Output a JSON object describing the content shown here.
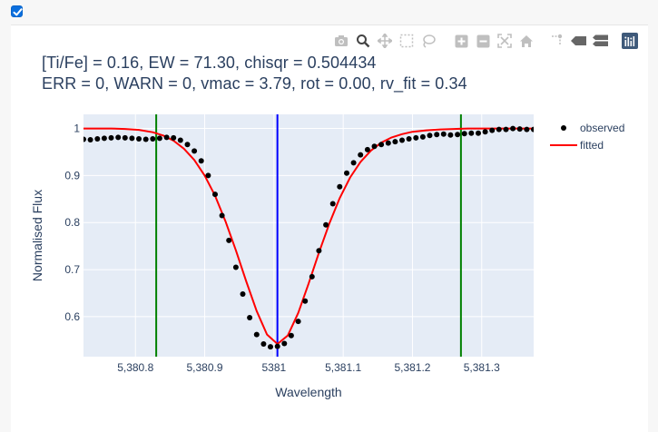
{
  "checkbox": {
    "checked": true
  },
  "modebar": {
    "icons": [
      "camera-icon",
      "zoom-icon",
      "pan-icon",
      "box-select-icon",
      "lasso-icon",
      "zoom-in-icon",
      "zoom-out-icon",
      "autoscale-icon",
      "home-icon",
      "spike-lines-icon",
      "hover-closest-icon",
      "hover-compare-icon",
      "plotly-logo-icon"
    ]
  },
  "title": {
    "line1": "[Ti/Fe] = 0.16, EW = 71.30, chisqr = 0.504434",
    "line2": "ERR = 0, WARN = 0, vmac = 3.79, rot = 0.00, rv_fit = 0.34"
  },
  "chart_data": {
    "type": "line",
    "xlabel": "Wavelength",
    "ylabel": "Normalised Flux",
    "xlim": [
      5380.725,
      5381.375
    ],
    "ylim": [
      0.515,
      1.03
    ],
    "x_ticks": [
      5380.8,
      5380.9,
      5381.0,
      5381.1,
      5381.2,
      5381.3
    ],
    "x_tick_labels": [
      "5,380.8",
      "5,380.9",
      "5381",
      "5,381.1",
      "5,381.2",
      "5,381.3"
    ],
    "y_ticks": [
      0.6,
      0.7,
      0.8,
      0.9,
      1.0
    ],
    "y_tick_labels": [
      "0.6",
      "0.7",
      "0.8",
      "0.9",
      "1"
    ],
    "grid": true,
    "legend_position": "top-right",
    "vertical_lines": [
      {
        "x": 5380.83,
        "color": "#008000"
      },
      {
        "x": 5381.005,
        "color": "#0000ff"
      },
      {
        "x": 5381.27,
        "color": "#008000"
      }
    ],
    "series": [
      {
        "name": "observed",
        "mode": "markers",
        "color": "#000000",
        "x": [
          5380.725,
          5380.735,
          5380.745,
          5380.755,
          5380.765,
          5380.775,
          5380.785,
          5380.795,
          5380.805,
          5380.815,
          5380.825,
          5380.835,
          5380.845,
          5380.855,
          5380.865,
          5380.875,
          5380.885,
          5380.895,
          5380.905,
          5380.915,
          5380.925,
          5380.935,
          5380.945,
          5380.955,
          5380.965,
          5380.975,
          5380.985,
          5380.995,
          5381.005,
          5381.015,
          5381.025,
          5381.035,
          5381.045,
          5381.055,
          5381.065,
          5381.075,
          5381.085,
          5381.095,
          5381.105,
          5381.115,
          5381.125,
          5381.135,
          5381.145,
          5381.155,
          5381.165,
          5381.175,
          5381.185,
          5381.195,
          5381.205,
          5381.215,
          5381.225,
          5381.235,
          5381.245,
          5381.255,
          5381.265,
          5381.275,
          5381.285,
          5381.295,
          5381.305,
          5381.315,
          5381.325,
          5381.335,
          5381.345,
          5381.355,
          5381.365,
          5381.375
        ],
        "y": [
          0.977,
          0.976,
          0.978,
          0.979,
          0.98,
          0.981,
          0.98,
          0.979,
          0.978,
          0.977,
          0.978,
          0.979,
          0.981,
          0.98,
          0.975,
          0.966,
          0.952,
          0.931,
          0.9,
          0.86,
          0.815,
          0.762,
          0.705,
          0.648,
          0.598,
          0.562,
          0.542,
          0.536,
          0.537,
          0.543,
          0.56,
          0.59,
          0.633,
          0.685,
          0.74,
          0.795,
          0.84,
          0.876,
          0.905,
          0.927,
          0.944,
          0.955,
          0.962,
          0.966,
          0.969,
          0.972,
          0.975,
          0.978,
          0.98,
          0.982,
          0.985,
          0.987,
          0.988,
          0.986,
          0.987,
          0.989,
          0.99,
          0.99,
          0.993,
          0.996,
          0.998,
          0.998,
          1.0,
          0.999,
          0.998,
          0.998
        ]
      },
      {
        "name": "fitted",
        "mode": "lines",
        "color": "#ff0000",
        "x": [
          5380.725,
          5380.745,
          5380.765,
          5380.785,
          5380.805,
          5380.825,
          5380.84,
          5380.855,
          5380.87,
          5380.885,
          5380.9,
          5380.915,
          5380.93,
          5380.945,
          5380.96,
          5380.975,
          5380.99,
          5381.005,
          5381.02,
          5381.035,
          5381.05,
          5381.065,
          5381.08,
          5381.095,
          5381.11,
          5381.125,
          5381.14,
          5381.155,
          5381.17,
          5381.185,
          5381.2,
          5381.22,
          5381.24,
          5381.26,
          5381.28,
          5381.3,
          5381.32,
          5381.34,
          5381.36,
          5381.375
        ],
        "y": [
          1.0,
          1.0,
          1.0,
          0.999,
          0.997,
          0.992,
          0.985,
          0.974,
          0.957,
          0.933,
          0.9,
          0.857,
          0.803,
          0.741,
          0.675,
          0.612,
          0.562,
          0.542,
          0.56,
          0.608,
          0.67,
          0.736,
          0.798,
          0.852,
          0.896,
          0.929,
          0.953,
          0.97,
          0.981,
          0.988,
          0.993,
          0.996,
          0.998,
          0.999,
          1.0,
          1.0,
          1.0,
          1.0,
          1.0,
          1.0
        ]
      }
    ]
  }
}
